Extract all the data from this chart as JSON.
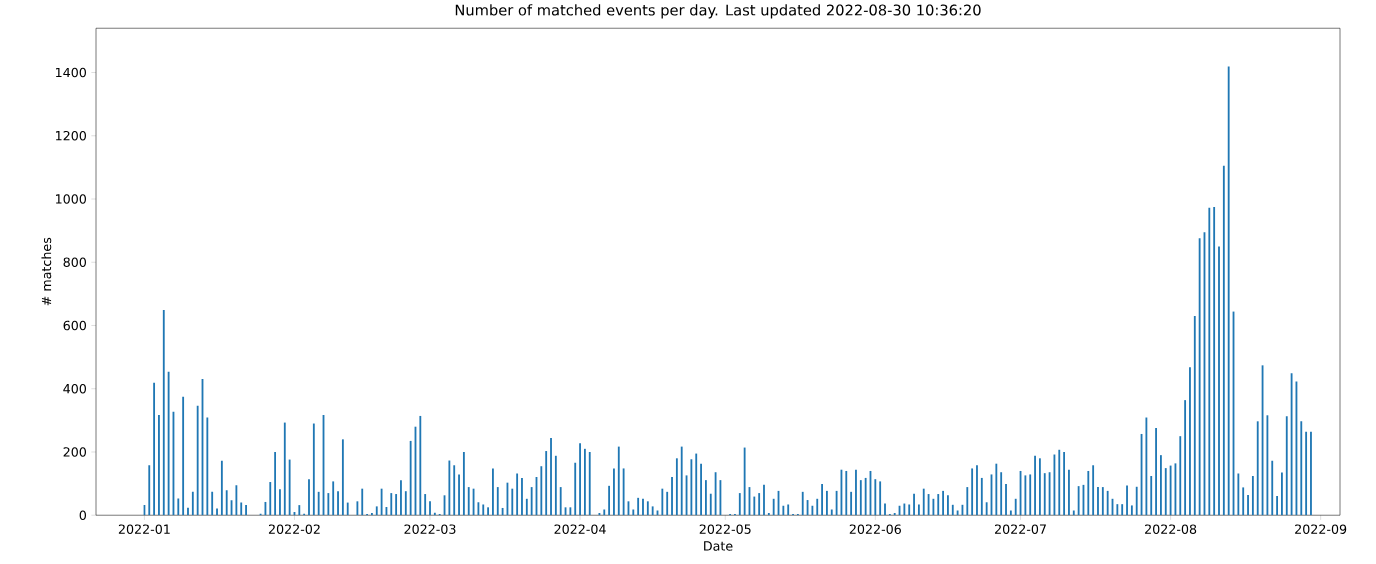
{
  "chart_data": {
    "type": "bar",
    "title": "Number of matched events per day. Last updated 2022-08-30 10:36:20",
    "xlabel": "Date",
    "ylabel": "# matches",
    "x": [
      "2022-01-01",
      "2022-01-02",
      "2022-01-03",
      "2022-01-04",
      "2022-01-05",
      "2022-01-06",
      "2022-01-07",
      "2022-01-08",
      "2022-01-09",
      "2022-01-10",
      "2022-01-11",
      "2022-01-12",
      "2022-01-13",
      "2022-01-14",
      "2022-01-15",
      "2022-01-16",
      "2022-01-17",
      "2022-01-18",
      "2022-01-19",
      "2022-01-20",
      "2022-01-21",
      "2022-01-22",
      "2022-01-23",
      "2022-01-24",
      "2022-01-25",
      "2022-01-26",
      "2022-01-27",
      "2022-01-28",
      "2022-01-29",
      "2022-01-30",
      "2022-01-31",
      "2022-02-01",
      "2022-02-02",
      "2022-02-03",
      "2022-02-04",
      "2022-02-05",
      "2022-02-06",
      "2022-02-07",
      "2022-02-08",
      "2022-02-09",
      "2022-02-10",
      "2022-02-11",
      "2022-02-12",
      "2022-02-13",
      "2022-02-14",
      "2022-02-15",
      "2022-02-16",
      "2022-02-17",
      "2022-02-18",
      "2022-02-19",
      "2022-02-20",
      "2022-02-21",
      "2022-02-22",
      "2022-02-23",
      "2022-02-24",
      "2022-02-25",
      "2022-02-26",
      "2022-02-27",
      "2022-02-28",
      "2022-03-01",
      "2022-03-02",
      "2022-03-03",
      "2022-03-04",
      "2022-03-05",
      "2022-03-06",
      "2022-03-07",
      "2022-03-08",
      "2022-03-09",
      "2022-03-10",
      "2022-03-11",
      "2022-03-12",
      "2022-03-13",
      "2022-03-14",
      "2022-03-15",
      "2022-03-16",
      "2022-03-17",
      "2022-03-18",
      "2022-03-19",
      "2022-03-20",
      "2022-03-21",
      "2022-03-22",
      "2022-03-23",
      "2022-03-24",
      "2022-03-25",
      "2022-03-26",
      "2022-03-27",
      "2022-03-28",
      "2022-03-29",
      "2022-03-30",
      "2022-03-31",
      "2022-04-01",
      "2022-04-02",
      "2022-04-03",
      "2022-04-04",
      "2022-04-05",
      "2022-04-06",
      "2022-04-07",
      "2022-04-08",
      "2022-04-09",
      "2022-04-10",
      "2022-04-11",
      "2022-04-12",
      "2022-04-13",
      "2022-04-14",
      "2022-04-15",
      "2022-04-16",
      "2022-04-17",
      "2022-04-18",
      "2022-04-19",
      "2022-04-20",
      "2022-04-21",
      "2022-04-22",
      "2022-04-23",
      "2022-04-24",
      "2022-04-25",
      "2022-04-26",
      "2022-04-27",
      "2022-04-28",
      "2022-04-29",
      "2022-04-30",
      "2022-05-01",
      "2022-05-02",
      "2022-05-03",
      "2022-05-04",
      "2022-05-05",
      "2022-05-06",
      "2022-05-07",
      "2022-05-08",
      "2022-05-09",
      "2022-05-10",
      "2022-05-11",
      "2022-05-12",
      "2022-05-13",
      "2022-05-14",
      "2022-05-15",
      "2022-05-16",
      "2022-05-17",
      "2022-05-18",
      "2022-05-19",
      "2022-05-20",
      "2022-05-21",
      "2022-05-22",
      "2022-05-23",
      "2022-05-24",
      "2022-05-25",
      "2022-05-26",
      "2022-05-27",
      "2022-05-28",
      "2022-05-29",
      "2022-05-30",
      "2022-05-31",
      "2022-06-01",
      "2022-06-02",
      "2022-06-03",
      "2022-06-04",
      "2022-06-05",
      "2022-06-06",
      "2022-06-07",
      "2022-06-08",
      "2022-06-09",
      "2022-06-10",
      "2022-06-11",
      "2022-06-12",
      "2022-06-13",
      "2022-06-14",
      "2022-06-15",
      "2022-06-16",
      "2022-06-17",
      "2022-06-18",
      "2022-06-19",
      "2022-06-20",
      "2022-06-21",
      "2022-06-22",
      "2022-06-23",
      "2022-06-24",
      "2022-06-25",
      "2022-06-26",
      "2022-06-27",
      "2022-06-28",
      "2022-06-29",
      "2022-06-30",
      "2022-07-01",
      "2022-07-02",
      "2022-07-03",
      "2022-07-04",
      "2022-07-05",
      "2022-07-06",
      "2022-07-07",
      "2022-07-08",
      "2022-07-09",
      "2022-07-10",
      "2022-07-11",
      "2022-07-12",
      "2022-07-13",
      "2022-07-14",
      "2022-07-15",
      "2022-07-16",
      "2022-07-17",
      "2022-07-18",
      "2022-07-19",
      "2022-07-20",
      "2022-07-21",
      "2022-07-22",
      "2022-07-23",
      "2022-07-24",
      "2022-07-25",
      "2022-07-26",
      "2022-07-27",
      "2022-07-28",
      "2022-07-29",
      "2022-07-30",
      "2022-07-31",
      "2022-08-01",
      "2022-08-02",
      "2022-08-03",
      "2022-08-04",
      "2022-08-05",
      "2022-08-06",
      "2022-08-07",
      "2022-08-08",
      "2022-08-09",
      "2022-08-10",
      "2022-08-11",
      "2022-08-12",
      "2022-08-13",
      "2022-08-14",
      "2022-08-15",
      "2022-08-16",
      "2022-08-17",
      "2022-08-18",
      "2022-08-19",
      "2022-08-20",
      "2022-08-21",
      "2022-08-22",
      "2022-08-23",
      "2022-08-24",
      "2022-08-25",
      "2022-08-26",
      "2022-08-27",
      "2022-08-28",
      "2022-08-29",
      "2022-08-30"
    ],
    "series": [
      {
        "color": "#1f77b4",
        "values": [
          32,
          158,
          419,
          317,
          649,
          454,
          327,
          53,
          375,
          24,
          74,
          346,
          431,
          309,
          74,
          21,
          172,
          79,
          47,
          95,
          40,
          32,
          null,
          null,
          5,
          42,
          105,
          200,
          82,
          293,
          176,
          10,
          32,
          5,
          114,
          290,
          74,
          317,
          70,
          107,
          76,
          240,
          40,
          null,
          44,
          84,
          4,
          7,
          28,
          84,
          26,
          70,
          67,
          111,
          76,
          235,
          280,
          314,
          67,
          44,
          8,
          4,
          63,
          173,
          158,
          129,
          200,
          89,
          84,
          41,
          34,
          25,
          148,
          89,
          23,
          103,
          84,
          132,
          118,
          52,
          89,
          121,
          155,
          203,
          244,
          188,
          89,
          25,
          25,
          166,
          228,
          210,
          200,
          null,
          7,
          18,
          93,
          148,
          217,
          148,
          44,
          18,
          55,
          52,
          44,
          28,
          15,
          84,
          74,
          121,
          180,
          217,
          126,
          177,
          195,
          163,
          111,
          68,
          136,
          111,
          null,
          4,
          4,
          70,
          214,
          89,
          59,
          70,
          96,
          7,
          52,
          77,
          30,
          34,
          4,
          4,
          74,
          48,
          30,
          52,
          99,
          77,
          18,
          77,
          144,
          140,
          74,
          144,
          111,
          118,
          140,
          114,
          107,
          37,
          4,
          7,
          30,
          37,
          34,
          68,
          34,
          84,
          67,
          52,
          67,
          77,
          63,
          33,
          15,
          33,
          89,
          148,
          158,
          118,
          41,
          129,
          163,
          136,
          99,
          15,
          52,
          140,
          126,
          129,
          188,
          180,
          133,
          136,
          192,
          207,
          200,
          144,
          15,
          92,
          96,
          140,
          158,
          89,
          89,
          77,
          52,
          35,
          35,
          94,
          31,
          90,
          257,
          309,
          124,
          276,
          190,
          149,
          157,
          164,
          250,
          364,
          468,
          630,
          876,
          895,
          972,
          975,
          850,
          1105,
          1419,
          644,
          132,
          88,
          64,
          124,
          297,
          474,
          316,
          172,
          61,
          135,
          313,
          449,
          423,
          297,
          264,
          264
        ]
      }
    ],
    "xlim": [
      "2021-12-22",
      "2022-09-05"
    ],
    "xticks": [
      {
        "value": "2022-01-01",
        "label": "2022-01"
      },
      {
        "value": "2022-02-01",
        "label": "2022-02"
      },
      {
        "value": "2022-03-01",
        "label": "2022-03"
      },
      {
        "value": "2022-04-01",
        "label": "2022-04"
      },
      {
        "value": "2022-05-01",
        "label": "2022-05"
      },
      {
        "value": "2022-06-01",
        "label": "2022-06"
      },
      {
        "value": "2022-07-01",
        "label": "2022-07"
      },
      {
        "value": "2022-08-01",
        "label": "2022-08"
      },
      {
        "value": "2022-09-01",
        "label": "2022-09"
      }
    ],
    "ylim": [
      0,
      1540
    ],
    "yticks": [
      0,
      200,
      400,
      600,
      800,
      1000,
      1200,
      1400
    ]
  }
}
